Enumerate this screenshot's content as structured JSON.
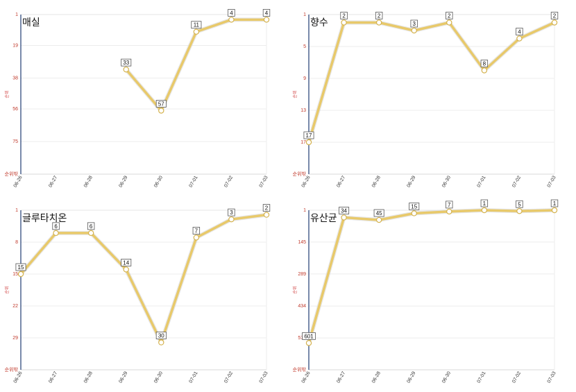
{
  "chart_data": [
    {
      "type": "line",
      "title": "매실",
      "ylabel": "순위",
      "y_bottom_label": "순위밖",
      "categories": [
        "06-26",
        "06-27",
        "06-28",
        "06-29",
        "06-30",
        "07-01",
        "07-02",
        "07-03"
      ],
      "values": [
        null,
        null,
        null,
        33,
        57,
        11,
        4,
        4
      ],
      "value_labels": [
        "",
        "",
        "",
        "33",
        "57",
        "11",
        "4",
        "4"
      ],
      "y_ticks": [
        1,
        19,
        38,
        56,
        75
      ],
      "ylim": [
        1,
        94
      ],
      "axis_inverted": true,
      "line_color": "#e8c96a"
    },
    {
      "type": "line",
      "title": "향수",
      "ylabel": "순위",
      "y_bottom_label": "순위밖",
      "categories": [
        "06-26",
        "06-27",
        "06-28",
        "06-29",
        "06-30",
        "07-01",
        "07-02",
        "07-03"
      ],
      "values": [
        17,
        2,
        2,
        3,
        2,
        8,
        4,
        2
      ],
      "value_labels": [
        "17",
        "2",
        "2",
        "3",
        "2",
        "8",
        "4",
        "2"
      ],
      "y_ticks": [
        1,
        5,
        9,
        13,
        17
      ],
      "ylim": [
        1,
        21
      ],
      "axis_inverted": true,
      "line_color": "#e8c96a"
    },
    {
      "type": "line",
      "title": "글루타치온",
      "ylabel": "순위",
      "y_bottom_label": "순위밖",
      "categories": [
        "06-26",
        "06-27",
        "06-28",
        "06-29",
        "06-30",
        "07-01",
        "07-02",
        "07-03"
      ],
      "values": [
        15,
        6,
        6,
        14,
        30,
        7,
        3,
        2
      ],
      "value_labels": [
        "15",
        "6",
        "6",
        "14",
        "30",
        "7",
        "3",
        "2"
      ],
      "y_ticks": [
        1,
        8,
        15,
        22,
        29
      ],
      "ylim": [
        1,
        36
      ],
      "axis_inverted": true,
      "line_color": "#e8c96a"
    },
    {
      "type": "line",
      "title": "유산균",
      "ylabel": "순위",
      "y_bottom_label": "순위밖",
      "categories": [
        "06-26",
        "06-27",
        "06-28",
        "06-29",
        "06-30",
        "07-01",
        "07-02",
        "07-03"
      ],
      "values": [
        601,
        34,
        45,
        15,
        7,
        1,
        5,
        1
      ],
      "value_labels": [
        "601",
        "34",
        "45",
        "15",
        "7",
        "1",
        "5",
        "1"
      ],
      "y_ticks": [
        1,
        145,
        289,
        434,
        578
      ],
      "ylim": [
        1,
        722
      ],
      "axis_inverted": true,
      "line_color": "#e8c96a"
    }
  ]
}
